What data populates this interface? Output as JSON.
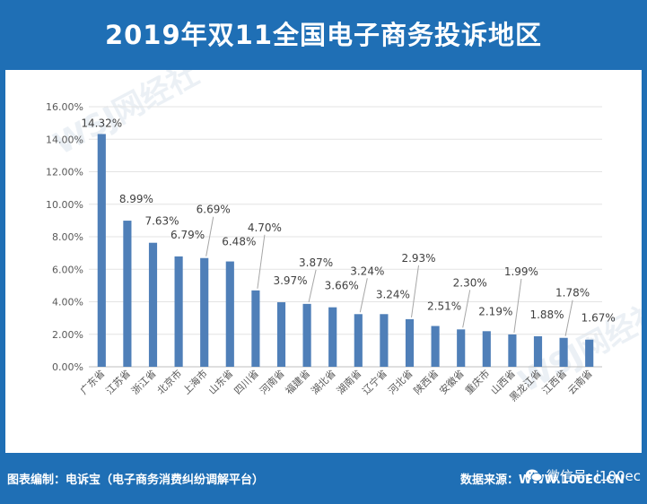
{
  "header": {
    "title": "2019年双11全国电子商务投诉地区"
  },
  "footer": {
    "credit": "图表编制：电诉宝（电子商务消费纠纷调解平台）",
    "source": "数据来源：WWW.100EC.CN",
    "wechat": "微信号: i100ec"
  },
  "watermark": {
    "logo_text": "WSJ网经社",
    "icon": "wangjingshe-logo-watermark"
  },
  "colors": {
    "accent": "#1f6fb5",
    "bar": "#4f7fb8"
  },
  "chart_data": {
    "type": "bar",
    "title": "",
    "xlabel": "",
    "ylabel": "",
    "ylim": [
      0,
      16
    ],
    "yticks": [
      "0.00%",
      "2.00%",
      "4.00%",
      "6.00%",
      "8.00%",
      "10.00%",
      "12.00%",
      "14.00%",
      "16.00%"
    ],
    "grid": true,
    "categories": [
      "广东省",
      "江苏省",
      "浙江省",
      "北京市",
      "上海市",
      "山东省",
      "四川省",
      "河南省",
      "福建省",
      "湖北省",
      "湖南省",
      "辽宁省",
      "河北省",
      "陕西省",
      "安徽省",
      "重庆市",
      "山西省",
      "黑龙江省",
      "江西省",
      "云南省"
    ],
    "values": [
      14.32,
      8.99,
      7.63,
      6.79,
      6.69,
      6.48,
      4.7,
      3.97,
      3.87,
      3.66,
      3.24,
      3.24,
      2.93,
      2.51,
      2.3,
      2.19,
      1.99,
      1.88,
      1.78,
      1.67
    ],
    "labels": [
      "14.32%",
      "8.99%",
      "7.63%",
      "6.79%",
      "6.69%",
      "6.48%",
      "4.70%",
      "3.97%",
      "3.87%",
      "3.66%",
      "3.24%",
      "3.24%",
      "2.93%",
      "2.51%",
      "2.30%",
      "2.19%",
      "1.99%",
      "1.88%",
      "1.78%",
      "1.67%"
    ]
  }
}
